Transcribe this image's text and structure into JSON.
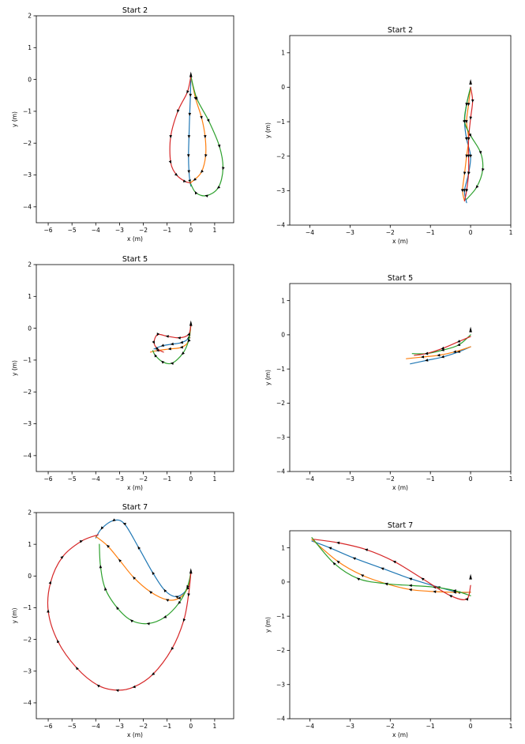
{
  "colors": {
    "blue": "#1f77b4",
    "orange": "#ff7f0e",
    "green": "#2ca02c",
    "red": "#d62728",
    "arrow": "#000000"
  },
  "chart_data": [
    {
      "type": "line",
      "title": "Start 2",
      "xlabel": "x (m)",
      "ylabel": "y (m)",
      "xlim": [
        -6.5,
        1.8
      ],
      "ylim": [
        -4.5,
        2
      ],
      "xticks": [
        -6,
        -5,
        -4,
        -3,
        -2,
        -1,
        0,
        1
      ],
      "yticks": [
        -4,
        -3,
        -2,
        -1,
        0,
        1,
        2
      ],
      "grid": false,
      "series": [
        {
          "color": "blue",
          "x": [
            0.0,
            -0.02,
            -0.05,
            -0.08,
            -0.1,
            -0.08,
            -0.04,
            0.0
          ],
          "y": [
            0.1,
            -0.5,
            -1.1,
            -1.8,
            -2.4,
            -2.9,
            -3.2,
            -3.35
          ]
        },
        {
          "color": "orange",
          "x": [
            0.0,
            0.2,
            0.45,
            0.6,
            0.62,
            0.45,
            0.15,
            -0.05
          ],
          "y": [
            0.1,
            -0.6,
            -1.2,
            -1.8,
            -2.4,
            -2.9,
            -3.15,
            -3.25
          ]
        },
        {
          "color": "green",
          "x": [
            0.0,
            0.25,
            0.75,
            1.2,
            1.35,
            1.15,
            0.65,
            0.2,
            -0.05
          ],
          "y": [
            0.1,
            -0.6,
            -1.3,
            -2.1,
            -2.8,
            -3.4,
            -3.65,
            -3.55,
            -3.2
          ]
        },
        {
          "color": "red",
          "x": [
            0.0,
            -0.15,
            -0.55,
            -0.85,
            -0.85,
            -0.6,
            -0.25,
            0.0
          ],
          "y": [
            0.1,
            -0.4,
            -1.0,
            -1.8,
            -2.6,
            -3.0,
            -3.2,
            -3.25
          ]
        }
      ]
    },
    {
      "type": "line",
      "title": "Start 2",
      "xlabel": "x (m)",
      "ylabel": "y (m)",
      "xlim": [
        -4.5,
        1.0
      ],
      "ylim": [
        -4,
        1.5
      ],
      "xticks": [
        -4,
        -3,
        -2,
        -1,
        0,
        1
      ],
      "yticks": [
        -4,
        -3,
        -2,
        -1,
        0,
        1
      ],
      "grid": false,
      "series": [
        {
          "color": "blue",
          "x": [
            0.0,
            -0.1,
            -0.15,
            -0.1,
            0.0,
            -0.05,
            -0.15,
            -0.1
          ],
          "y": [
            0.0,
            -0.5,
            -1.0,
            -1.5,
            -2.0,
            -2.5,
            -3.0,
            -3.35
          ]
        },
        {
          "color": "orange",
          "x": [
            0.0,
            -0.05,
            -0.1,
            -0.05,
            -0.1,
            -0.15,
            -0.2,
            -0.15
          ],
          "y": [
            0.0,
            -0.5,
            -1.0,
            -1.5,
            -2.0,
            -2.5,
            -3.0,
            -3.3
          ]
        },
        {
          "color": "green",
          "x": [
            0.0,
            -0.1,
            -0.15,
            0.0,
            0.25,
            0.3,
            0.15,
            -0.1
          ],
          "y": [
            0.0,
            -0.5,
            -1.0,
            -1.4,
            -1.9,
            -2.4,
            -2.9,
            -3.25
          ]
        },
        {
          "color": "red",
          "x": [
            0.0,
            0.05,
            0.0,
            -0.05,
            -0.05,
            -0.05,
            -0.1,
            -0.15
          ],
          "y": [
            0.0,
            -0.4,
            -0.9,
            -1.5,
            -2.0,
            -2.5,
            -3.0,
            -3.3
          ]
        }
      ]
    },
    {
      "type": "line",
      "title": "Start 5",
      "xlabel": "x (m)",
      "ylabel": "y (m)",
      "xlim": [
        -6.5,
        1.8
      ],
      "ylim": [
        -4.5,
        2
      ],
      "xticks": [
        -6,
        -5,
        -4,
        -3,
        -2,
        -1,
        0,
        1
      ],
      "yticks": [
        -4,
        -3,
        -2,
        -1,
        0,
        1,
        2
      ],
      "grid": false,
      "series": [
        {
          "color": "blue",
          "x": [
            0.0,
            -0.1,
            -0.4,
            -0.8,
            -1.2,
            -1.55
          ],
          "y": [
            0.1,
            -0.3,
            -0.45,
            -0.5,
            -0.55,
            -0.65
          ]
        },
        {
          "color": "orange",
          "x": [
            0.0,
            -0.1,
            -0.4,
            -0.9,
            -1.4,
            -1.7
          ],
          "y": [
            0.1,
            -0.4,
            -0.6,
            -0.65,
            -0.7,
            -0.75
          ]
        },
        {
          "color": "green",
          "x": [
            0.0,
            -0.1,
            -0.35,
            -0.8,
            -1.2,
            -1.5,
            -1.6
          ],
          "y": [
            0.1,
            -0.4,
            -0.8,
            -1.1,
            -1.05,
            -0.85,
            -0.7
          ]
        },
        {
          "color": "red",
          "x": [
            0.0,
            -0.1,
            -0.5,
            -1.0,
            -1.4,
            -1.55,
            -1.4,
            -1.15
          ],
          "y": [
            0.1,
            -0.2,
            -0.3,
            -0.25,
            -0.2,
            -0.45,
            -0.65,
            -0.75
          ]
        }
      ]
    },
    {
      "type": "line",
      "title": "Start 5",
      "xlabel": "x (m)",
      "ylabel": "y (m)",
      "xlim": [
        -4.5,
        1.0
      ],
      "ylim": [
        -4,
        1.5
      ],
      "xticks": [
        -4,
        -3,
        -2,
        -1,
        0,
        1
      ],
      "yticks": [
        -4,
        -3,
        -2,
        -1,
        0,
        1
      ],
      "grid": false,
      "series": [
        {
          "color": "blue",
          "x": [
            0.0,
            -0.3,
            -0.7,
            -1.1,
            -1.5
          ],
          "y": [
            -0.35,
            -0.5,
            -0.65,
            -0.75,
            -0.85
          ]
        },
        {
          "color": "orange",
          "x": [
            0.0,
            -0.4,
            -0.8,
            -1.2,
            -1.6
          ],
          "y": [
            -0.35,
            -0.5,
            -0.6,
            -0.65,
            -0.7
          ]
        },
        {
          "color": "green",
          "x": [
            0.0,
            -0.3,
            -0.7,
            -1.1,
            -1.45
          ],
          "y": [
            0.0,
            -0.3,
            -0.45,
            -0.55,
            -0.55
          ]
        },
        {
          "color": "red",
          "x": [
            0.0,
            -0.3,
            -0.7,
            -1.1,
            -1.4
          ],
          "y": [
            -0.05,
            -0.2,
            -0.4,
            -0.55,
            -0.6
          ]
        }
      ]
    },
    {
      "type": "line",
      "title": "Start 7",
      "xlabel": "x (m)",
      "ylabel": "y (m)",
      "xlim": [
        -6.5,
        1.8
      ],
      "ylim": [
        -4.5,
        2
      ],
      "xticks": [
        -6,
        -5,
        -4,
        -3,
        -2,
        -1,
        0,
        1
      ],
      "yticks": [
        -4,
        -3,
        -2,
        -1,
        0,
        1,
        2
      ],
      "grid": false,
      "series": [
        {
          "color": "blue",
          "x": [
            0.0,
            -0.15,
            -0.6,
            -1.1,
            -1.6,
            -2.2,
            -2.8,
            -3.25,
            -3.75,
            -4.0
          ],
          "y": [
            0.1,
            -0.4,
            -0.65,
            -0.45,
            0.1,
            0.9,
            1.65,
            1.75,
            1.5,
            1.2
          ]
        },
        {
          "color": "orange",
          "x": [
            0.0,
            -0.15,
            -0.5,
            -1.0,
            -1.7,
            -2.4,
            -3.0,
            -3.5,
            -4.0
          ],
          "y": [
            0.1,
            -0.4,
            -0.7,
            -0.75,
            -0.5,
            -0.05,
            0.5,
            0.95,
            1.25
          ]
        },
        {
          "color": "green",
          "x": [
            0.0,
            -0.15,
            -0.5,
            -1.1,
            -1.8,
            -2.5,
            -3.1,
            -3.6,
            -3.8,
            -3.85
          ],
          "y": [
            0.1,
            -0.35,
            -0.85,
            -1.3,
            -1.5,
            -1.4,
            -1.0,
            -0.4,
            0.3,
            1.0
          ]
        },
        {
          "color": "red",
          "x": [
            0.0,
            -0.1,
            -0.3,
            -0.8,
            -1.6,
            -2.4,
            -3.1,
            -3.9,
            -4.8,
            -5.6,
            -6.0,
            -5.9,
            -5.4,
            -4.6,
            -3.9
          ],
          "y": [
            0.1,
            -0.6,
            -1.4,
            -2.3,
            -3.1,
            -3.5,
            -3.6,
            -3.45,
            -2.9,
            -2.05,
            -1.1,
            -0.2,
            0.6,
            1.1,
            1.3
          ]
        }
      ]
    },
    {
      "type": "line",
      "title": "Start 7",
      "xlabel": "x (m)",
      "ylabel": "y (m)",
      "xlim": [
        -4.5,
        1.0
      ],
      "ylim": [
        -4,
        1.5
      ],
      "xticks": [
        -4,
        -3,
        -2,
        -1,
        0,
        1
      ],
      "yticks": [
        -4,
        -3,
        -2,
        -1,
        0,
        1
      ],
      "grid": false,
      "series": [
        {
          "color": "blue",
          "x": [
            0.0,
            -0.3,
            -0.8,
            -1.5,
            -2.2,
            -2.9,
            -3.5,
            -3.95
          ],
          "y": [
            -0.3,
            -0.3,
            -0.15,
            0.1,
            0.4,
            0.7,
            1.0,
            1.2
          ]
        },
        {
          "color": "orange",
          "x": [
            0.0,
            -0.4,
            -0.9,
            -1.5,
            -2.1,
            -2.7,
            -3.3,
            -3.95
          ],
          "y": [
            -0.3,
            -0.3,
            -0.28,
            -0.22,
            -0.05,
            0.2,
            0.6,
            1.25
          ]
        },
        {
          "color": "green",
          "x": [
            0.0,
            -0.4,
            -0.9,
            -1.5,
            -2.1,
            -2.8,
            -3.4,
            -3.95
          ],
          "y": [
            -0.4,
            -0.25,
            -0.15,
            -0.1,
            -0.05,
            0.1,
            0.55,
            1.3
          ]
        },
        {
          "color": "red",
          "x": [
            0.0,
            -0.1,
            -0.5,
            -1.2,
            -1.9,
            -2.6,
            -3.3,
            -3.9
          ],
          "y": [
            -0.1,
            -0.5,
            -0.4,
            0.1,
            0.6,
            0.95,
            1.15,
            1.25
          ]
        }
      ]
    }
  ]
}
